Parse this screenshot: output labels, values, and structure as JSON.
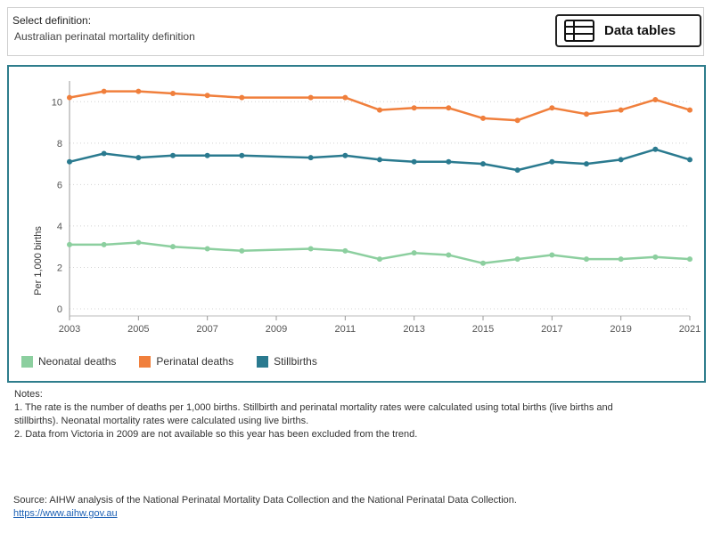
{
  "selector": {
    "label": "Select definition:",
    "value": "Australian perinatal mortality definition"
  },
  "data_tables_button": {
    "label": "Data tables",
    "icon": "table-icon"
  },
  "chart_data": {
    "type": "line",
    "title": "",
    "xlabel": "",
    "ylabel": "Per 1,000 births",
    "x": [
      2003,
      2004,
      2005,
      2006,
      2007,
      2008,
      2010,
      2011,
      2012,
      2013,
      2014,
      2015,
      2016,
      2017,
      2018,
      2019,
      2020,
      2021
    ],
    "x_tick_labels": [
      "2003",
      "2005",
      "2007",
      "2009",
      "2011",
      "2013",
      "2015",
      "2017",
      "2019",
      "2021"
    ],
    "y_ticks": [
      0,
      2,
      4,
      6,
      8,
      10
    ],
    "ylim": [
      0,
      11
    ],
    "xlim": [
      2003,
      2021
    ],
    "grid": "horizontal dotted",
    "legend_position": "bottom",
    "series": [
      {
        "name": "Neonatal deaths",
        "color": "#8ccf9f",
        "values": [
          3.1,
          3.1,
          3.2,
          3.0,
          2.9,
          2.8,
          2.9,
          2.8,
          2.4,
          2.7,
          2.6,
          2.2,
          2.4,
          2.6,
          2.4,
          2.4,
          2.5,
          2.4
        ]
      },
      {
        "name": "Perinatal deaths",
        "color": "#f07f3c",
        "values": [
          10.2,
          10.5,
          10.5,
          10.4,
          10.3,
          10.2,
          10.2,
          10.2,
          9.6,
          9.7,
          9.7,
          9.2,
          9.1,
          9.7,
          9.4,
          9.6,
          10.1,
          9.6
        ]
      },
      {
        "name": "Stillbirths",
        "color": "#2a7a8f",
        "values": [
          7.1,
          7.5,
          7.3,
          7.4,
          7.4,
          7.4,
          7.3,
          7.4,
          7.2,
          7.1,
          7.1,
          7.0,
          6.7,
          7.1,
          7.0,
          7.2,
          7.7,
          7.2
        ]
      }
    ]
  },
  "notes": {
    "heading": "Notes:",
    "lines": [
      "1. The rate is the number of deaths per 1,000 births. Stillbirth and perinatal mortality rates were calculated using total births (live births and",
      "stillbirths). Neonatal mortality rates were calculated using live births.",
      "2. Data from Victoria in 2009 are not available so this year has been excluded from the trend."
    ]
  },
  "source": {
    "text": "Source: AIHW analysis of the National Perinatal Mortality Data Collection and the National Perinatal Data Collection.",
    "link": "https://www.aihw.gov.au"
  }
}
